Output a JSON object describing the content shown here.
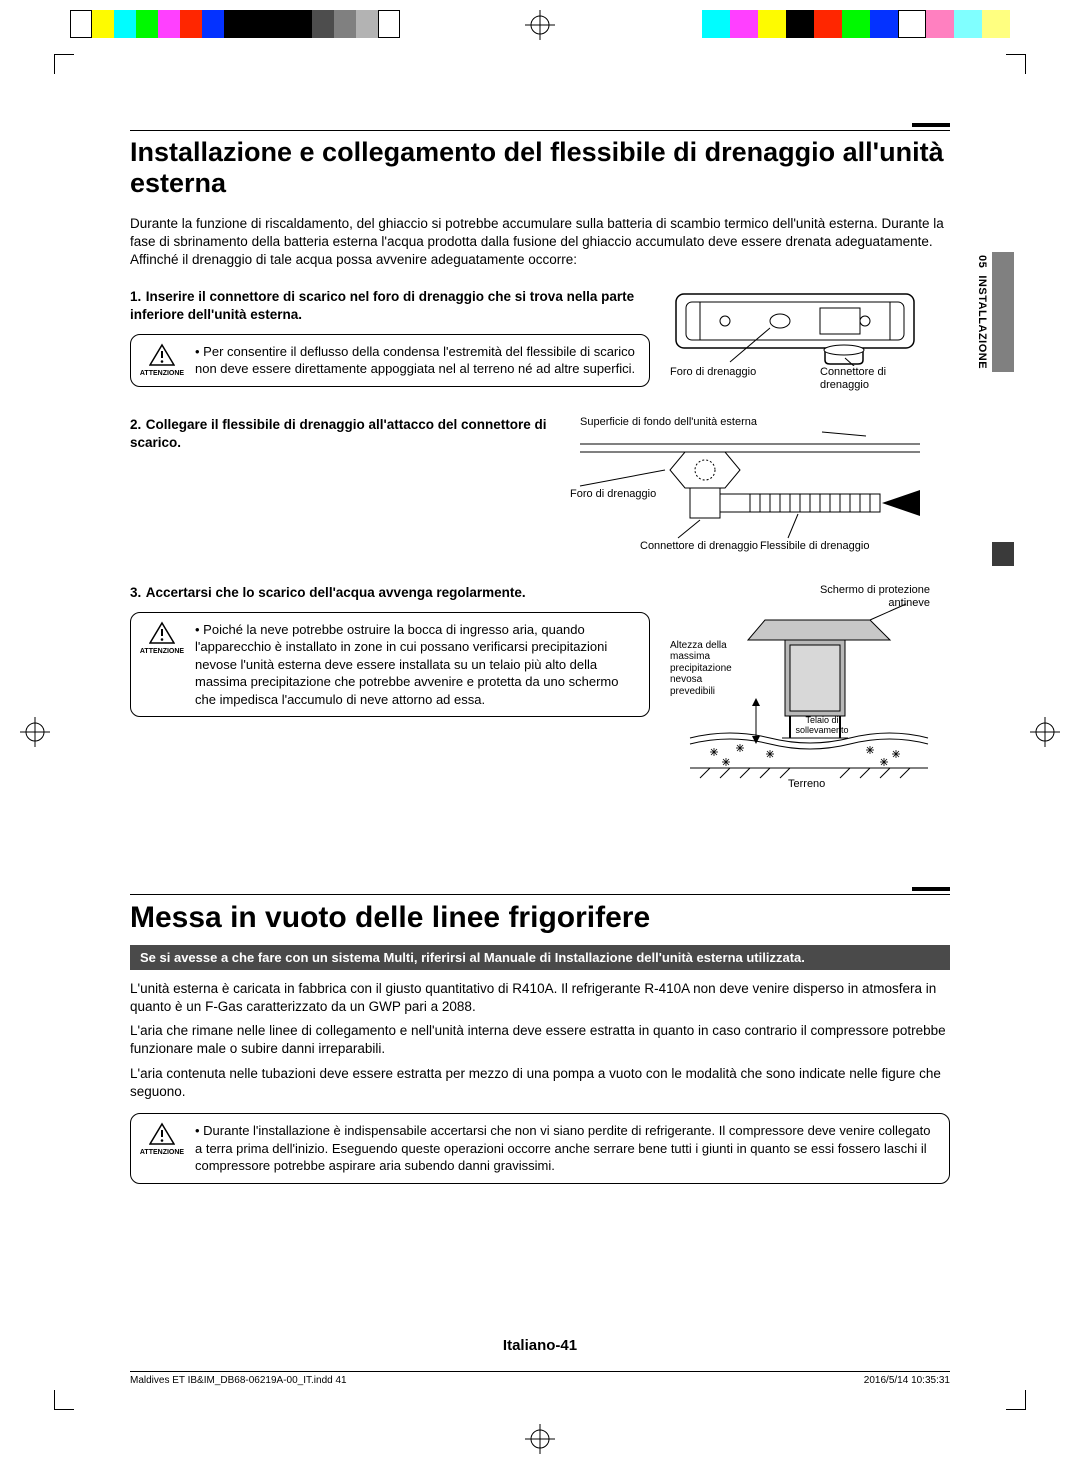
{
  "print_marks": {
    "left_bar_colors": [
      "#ffffff",
      "#fefb00",
      "#00fdff",
      "#00f900",
      "#ff40ff",
      "#ff2600",
      "#0432ff",
      "#000000",
      "#000000",
      "#000000",
      "#000000",
      "#4d4d4d",
      "#808080",
      "#b3b3b3",
      "#ffffff"
    ],
    "left_bar_widths": [
      22,
      22,
      22,
      22,
      22,
      22,
      22,
      22,
      22,
      22,
      22,
      22,
      22,
      22,
      22
    ],
    "right_bar_colors": [
      "#00fdff",
      "#ff40ff",
      "#fefb00",
      "#000000",
      "#ff2600",
      "#00f900",
      "#0432ff",
      "#ffffff",
      "#ff80c0",
      "#80ffff",
      "#ffff80"
    ],
    "right_bar_widths": [
      28,
      28,
      28,
      28,
      28,
      28,
      28,
      28,
      28,
      28,
      28
    ]
  },
  "side_tab": {
    "number": "05",
    "label": "INSTALLAZIONE"
  },
  "section1": {
    "title": "Installazione e collegamento del flessibile di drenaggio all'unità esterna",
    "intro": "Durante la funzione di riscaldamento, del ghiaccio si potrebbe accumulare sulla batteria di scambio termico dell'unità esterna. Durante la fase di sbrinamento della batteria esterna  l'acqua prodotta dalla fusione del ghiaccio accumulato deve essere drenata adeguatamente.  Affinché il drenaggio di tale acqua possa avvenire adeguatamente  occorre:",
    "step1": {
      "num": "1.",
      "title": "Inserire il connettore di scarico nel  foro di drenaggio che si trova nella parte inferiore dell'unità esterna.",
      "caution": "Per consentire il deflusso della condensa l'estremità del flessibile di scarico non deve essere direttamente appoggiata nel al terreno né ad altre superfici.",
      "fig_labels": {
        "foro": "Foro di drenaggio",
        "conn": "Connettore di drenaggio"
      }
    },
    "step2": {
      "num": "2.",
      "title": "Collegare il flessibile di drenaggio all'attacco del connettore di scarico.",
      "fig_labels": {
        "surface": "Superficie di fondo dell'unità esterna",
        "foro": "Foro di drenaggio",
        "conn": "Connettore di drenaggio",
        "fless": "Flessibile di drenaggio"
      }
    },
    "step3": {
      "num": "3.",
      "title": "Accertarsi che lo scarico dell'acqua avvenga regolarmente.",
      "caution": "Poiché la neve potrebbe ostruire la bocca di ingresso aria, quando l'apparecchio è installato in zone in cui possano verificarsi precipitazioni nevose l'unità esterna deve essere installata su un telaio più alto della massima precipitazione che potrebbe avvenire  e protetta da uno schermo che impedisca l'accumulo di neve attorno ad essa.",
      "fig_labels": {
        "screen": "Schermo di protezione antineve",
        "height": "Altezza della massima precipitazione nevosa prevedibili",
        "frame": "Telaio di sollevamento",
        "ground": "Terreno"
      }
    },
    "caution_label": "ATTENZIONE"
  },
  "section2": {
    "title": "Messa in vuoto delle linee frigorifere",
    "note": "Se si avesse a che fare con un sistema Multi, riferirsi al Manuale di Installazione dell'unità esterna utilizzata.",
    "p1": "L'unità esterna è caricata in fabbrica con il giusto quantitativo di R410A.  Il refrigerante R-410A non deve venire disperso in atmosfera in quanto è un F-Gas caratterizzato da un GWP pari a 2088.",
    "p2": "L'aria che rimane nelle linee di collegamento e nell'unità interna deve essere estratta in quanto in caso contrario il compressore potrebbe funzionare male o subire danni irreparabili.",
    "p3": "L'aria contenuta nelle tubazioni deve essere estratta per mezzo di una pompa a vuoto con le modalità che sono indicate nelle figure che seguono.",
    "caution": "Durante l'installazione è indispensabile accertarsi che non vi siano perdite di refrigerante. Il compressore deve venire collegato a terra prima dell'inizio. Eseguendo queste operazioni occorre anche serrare bene tutti i giunti in quanto se essi fossero laschi il compressore potrebbe aspirare aria subendo danni gravissimi."
  },
  "page_number": "Italiano-41",
  "footer": {
    "file": "Maldives ET IB&IM_DB68-06219A-00_IT.indd   41",
    "date": "2016/5/14   10:35:31"
  }
}
